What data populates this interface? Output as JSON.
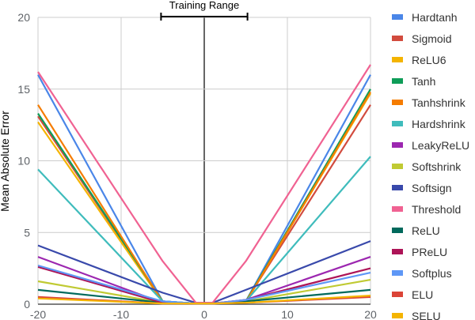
{
  "chart_data": {
    "type": "line",
    "title": "",
    "xlabel": "",
    "ylabel": "Mean Absolute Error",
    "xlim": [
      -20,
      20
    ],
    "ylim": [
      0,
      20
    ],
    "xticks": [
      -20,
      -10,
      0,
      10,
      20
    ],
    "yticks": [
      0,
      5,
      10,
      15,
      20
    ],
    "annotation": {
      "label": "Training Range",
      "x_range": [
        -5.2,
        5.2
      ]
    },
    "legend_position": "right",
    "grid": true,
    "series": [
      {
        "name": "Hardtanh",
        "color": "#4a86e8",
        "x": [
          -20,
          -5,
          -1,
          1,
          5,
          20
        ],
        "y": [
          16.0,
          0.2,
          0.05,
          0.05,
          0.2,
          16.0
        ]
      },
      {
        "name": "Sigmoid",
        "color": "#d24b3e",
        "x": [
          -20,
          -5,
          -1,
          1,
          5,
          20
        ],
        "y": [
          13.1,
          0.2,
          0.05,
          0.05,
          0.2,
          13.9
        ]
      },
      {
        "name": "ReLU6",
        "color": "#f4b400",
        "x": [
          -20,
          -5,
          -1,
          1,
          5,
          20
        ],
        "y": [
          12.7,
          0.15,
          0.05,
          0.05,
          0.15,
          14.7
        ]
      },
      {
        "name": "Tanh",
        "color": "#0f9d58",
        "x": [
          -20,
          -5,
          -1,
          1,
          5,
          20
        ],
        "y": [
          13.3,
          0.2,
          0.05,
          0.05,
          0.2,
          15.0
        ]
      },
      {
        "name": "Tanhshrink",
        "color": "#f57c00",
        "x": [
          -20,
          -5,
          -1,
          1,
          5,
          20
        ],
        "y": [
          13.9,
          0.15,
          0.05,
          0.05,
          0.15,
          14.8
        ]
      },
      {
        "name": "Hardshrink",
        "color": "#3fbcbc",
        "x": [
          -20,
          -5,
          -1,
          1,
          5,
          20
        ],
        "y": [
          9.4,
          0.2,
          0.05,
          0.05,
          0.2,
          10.3
        ]
      },
      {
        "name": "LeakyReLU",
        "color": "#9c27b0",
        "x": [
          -20,
          -5,
          -1,
          1,
          5,
          20
        ],
        "y": [
          3.3,
          0.1,
          0.05,
          0.05,
          0.3,
          3.3
        ]
      },
      {
        "name": "Softshrink",
        "color": "#c0ca33",
        "x": [
          -20,
          -5,
          -1,
          1,
          5,
          20
        ],
        "y": [
          1.6,
          0.1,
          0.05,
          0.05,
          0.2,
          1.7
        ]
      },
      {
        "name": "Softsign",
        "color": "#3949ab",
        "x": [
          -20,
          -5,
          -1,
          1,
          5,
          20
        ],
        "y": [
          4.1,
          0.8,
          0.1,
          0.1,
          1.0,
          4.4
        ]
      },
      {
        "name": "Threshold",
        "color": "#f06292",
        "x": [
          -20,
          -5,
          -1,
          1,
          5,
          20
        ],
        "y": [
          16.2,
          3.0,
          0.1,
          0.1,
          3.0,
          16.7
        ]
      },
      {
        "name": "ReLU",
        "color": "#00695c",
        "x": [
          -20,
          -5,
          -1,
          1,
          5,
          20
        ],
        "y": [
          1.0,
          0.1,
          0.05,
          0.05,
          0.2,
          1.0
        ]
      },
      {
        "name": "PReLU",
        "color": "#ad1457",
        "x": [
          -20,
          -5,
          -1,
          1,
          5,
          20
        ],
        "y": [
          2.6,
          0.1,
          0.05,
          0.05,
          0.3,
          2.5
        ]
      },
      {
        "name": "Softplus",
        "color": "#5e97f6",
        "x": [
          -20,
          -5,
          -1,
          1,
          5,
          20
        ],
        "y": [
          2.7,
          0.2,
          0.05,
          0.05,
          0.3,
          2.2
        ]
      },
      {
        "name": "ELU",
        "color": "#db4437",
        "x": [
          -20,
          -5,
          -1,
          1,
          5,
          20
        ],
        "y": [
          0.5,
          0.05,
          0.05,
          0.05,
          0.1,
          0.5
        ]
      },
      {
        "name": "SELU",
        "color": "#f4b400",
        "x": [
          -20,
          -5,
          -1,
          1,
          5,
          20
        ],
        "y": [
          0.4,
          0.05,
          0.05,
          0.05,
          0.1,
          0.6
        ]
      }
    ]
  }
}
